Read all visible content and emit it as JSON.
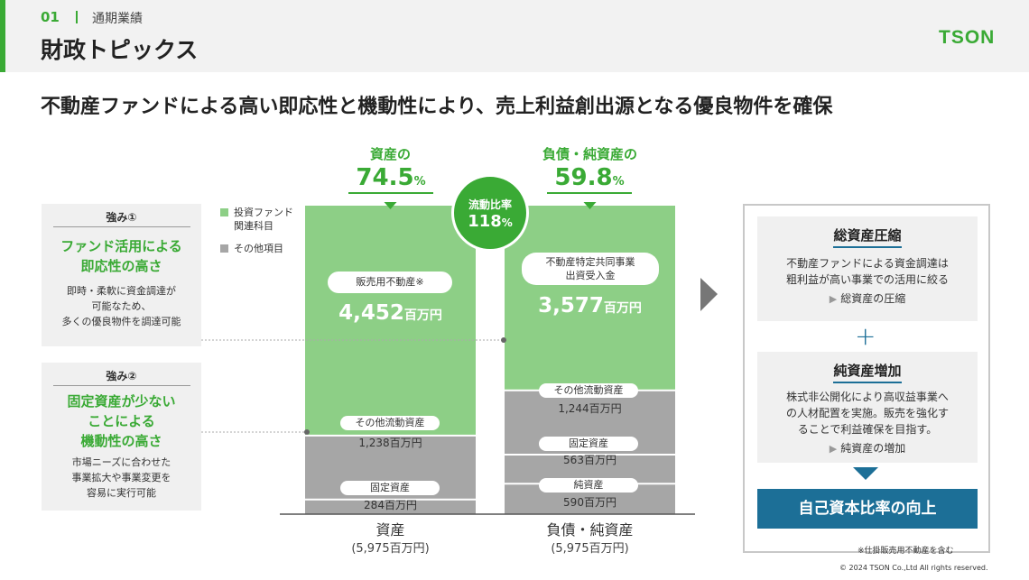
{
  "header": {
    "section_number": "01",
    "section_name": "通期業績",
    "page_title": "財政トピックス",
    "logo": "TSON"
  },
  "headline": "不動産ファンドによる高い即応性と機動性により、売上利益創出源となる優良物件を確保",
  "strengths": [
    {
      "tag": "強み①",
      "title_lines": [
        "ファンド活用による",
        "即応性の高さ"
      ],
      "desc_lines": [
        "即時・柔軟に資金調達が",
        "可能なため、",
        "多くの優良物件を調達可能"
      ]
    },
    {
      "tag": "強み②",
      "title_lines": [
        "固定資産が少ない",
        "ことによる",
        "機動性の高さ"
      ],
      "desc_lines": [
        "市場ニーズに合わせた",
        "事業拡大や事業変更を",
        "容易に実行可能"
      ]
    }
  ],
  "legend": [
    {
      "label_lines": [
        "投資ファンド",
        "関連科目"
      ],
      "color": "#8dcf86"
    },
    {
      "label_lines": [
        "その他項目"
      ],
      "color": "#a6a6a6"
    }
  ],
  "colors": {
    "green": "#3aaa35",
    "light_green": "#8dcf86",
    "gray": "#a6a6a6",
    "blue": "#1c6f97"
  },
  "chart_data": {
    "type": "bar",
    "stacked": true,
    "categories": [
      "資産",
      "負債・純資産"
    ],
    "category_totals": [
      "(5,975百万円)",
      "(5,975百万円)"
    ],
    "unit": "百万円",
    "series_by_bar": [
      [
        {
          "name": "販売用不動産※",
          "value": 4452,
          "label": "4,452",
          "fund_related": true
        },
        {
          "name": "その他流動資産",
          "value": 1238,
          "label": "1,238百万円",
          "fund_related": false
        },
        {
          "name": "固定資産",
          "value": 284,
          "label": "284百万円",
          "fund_related": false
        }
      ],
      [
        {
          "name_lines": [
            "不動産特定共同事業",
            "出資受入金"
          ],
          "value": 3577,
          "label": "3,577",
          "fund_related": true
        },
        {
          "name": "その他流動資産",
          "value": 1244,
          "label": "1,244百万円",
          "fund_related": false
        },
        {
          "name": "固定資産",
          "value": 563,
          "label": "563百万円",
          "fund_related": false
        },
        {
          "name": "純資産",
          "value": 590,
          "label": "590百万円",
          "fund_related": false
        }
      ]
    ],
    "ratios": [
      {
        "label": "資産の",
        "value": "74.5",
        "unit": "%"
      },
      {
        "label": "負債・純資産の",
        "value": "59.8",
        "unit": "%"
      }
    ],
    "current_ratio": {
      "label": "流動比率",
      "value": "118",
      "unit": "%"
    }
  },
  "right_panel": {
    "box1": {
      "title": "総資産圧縮",
      "desc_lines": [
        "不動産ファンドによる資金調達は",
        "粗利益が高い事業での活用に絞る"
      ],
      "result": "総資産の圧縮"
    },
    "box2": {
      "title": "純資産増加",
      "desc_lines": [
        "株式非公開化により高収益事業へ",
        "の人材配置を実施。販売を強化す",
        "ることで利益確保を目指す。"
      ],
      "result": "純資産の増加"
    },
    "plus": "+",
    "final": "自己資本比率の向上"
  },
  "footer": {
    "note": "※仕掛販売用不動産を含む",
    "copyright": "© 2024 TSON Co.,Ltd All rights reserved."
  }
}
